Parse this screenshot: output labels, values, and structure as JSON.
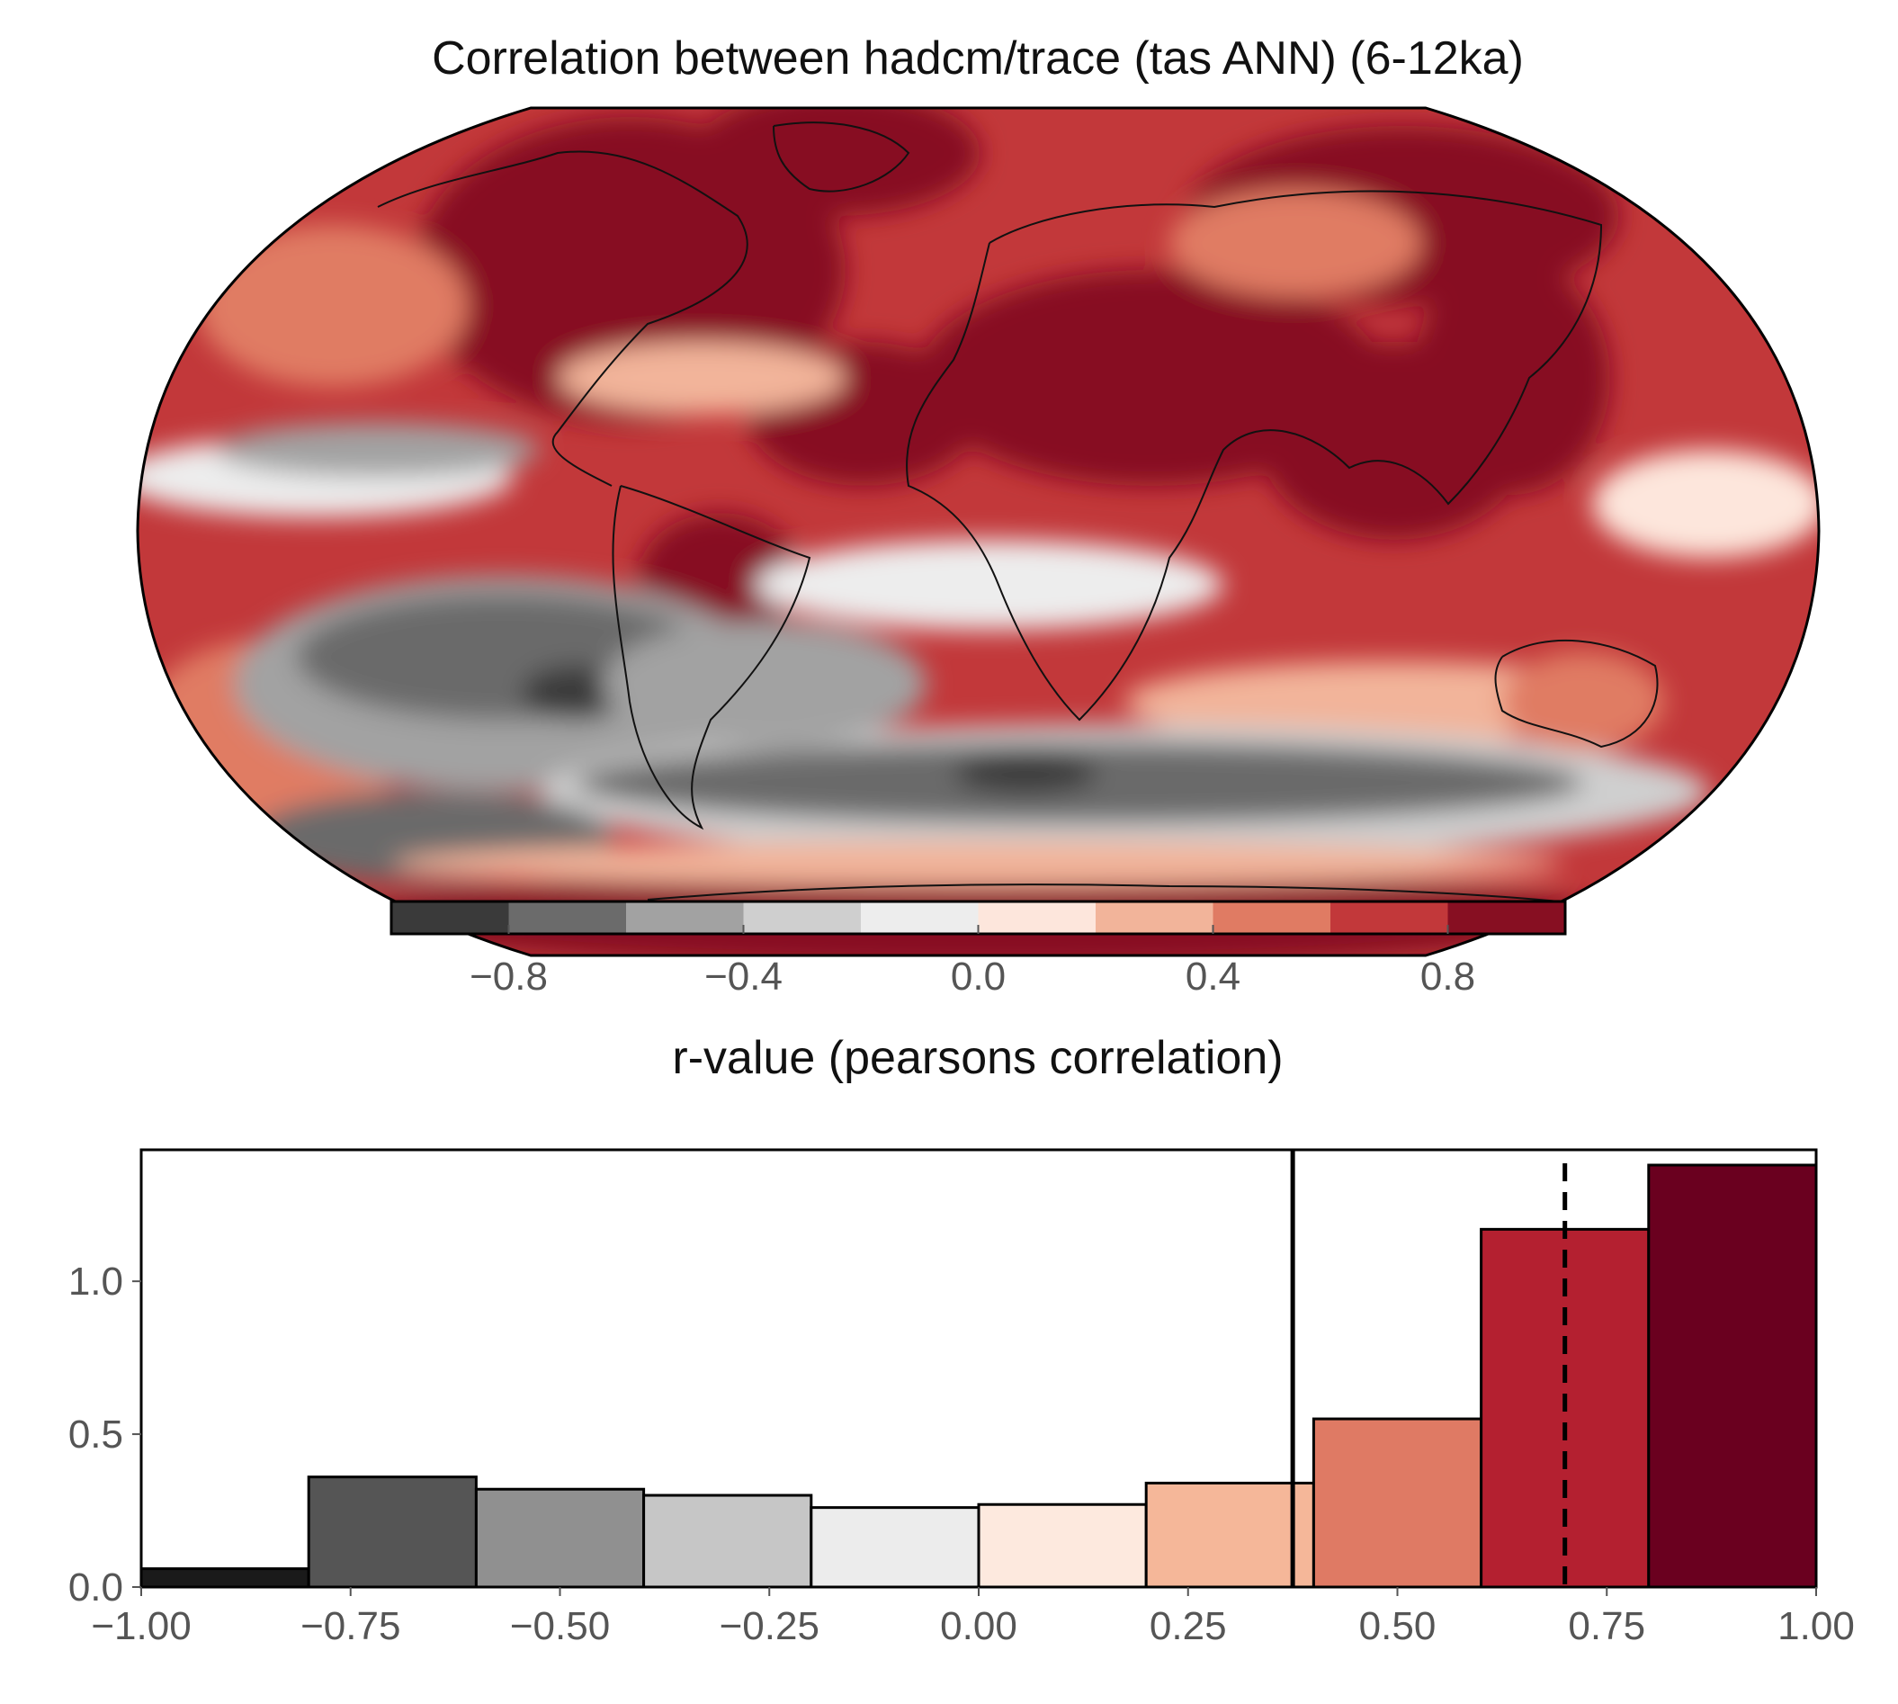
{
  "chart_data": [
    {
      "type": "heatmap",
      "title": "Correlation between hadcm/trace (tas ANN) (6-12ka)",
      "projection": "Robinson (global map)",
      "colorbar": {
        "label": "r-value (pearsons correlation)",
        "levels": [
          -1.0,
          -0.8,
          -0.6,
          -0.4,
          -0.2,
          0.0,
          0.2,
          0.4,
          0.6,
          0.8,
          1.0
        ],
        "ticks": [
          -0.8,
          -0.4,
          0.0,
          0.4,
          0.8
        ],
        "tick_labels": [
          "−0.8",
          "−0.4",
          "0.0",
          "0.4",
          "0.8"
        ],
        "colors": [
          "#3a3a3a",
          "#6b6b6b",
          "#a2a2a2",
          "#cfcfcf",
          "#ededed",
          "#fde6dc",
          "#f2b49a",
          "#e07b63",
          "#c2383a",
          "#870f22"
        ]
      }
    },
    {
      "type": "bar",
      "subtype": "histogram",
      "bin_edges": [
        -1.0,
        -0.8,
        -0.6,
        -0.4,
        -0.2,
        0.0,
        0.2,
        0.4,
        0.6,
        0.8,
        1.0
      ],
      "values": [
        0.06,
        0.36,
        0.32,
        0.3,
        0.26,
        0.27,
        0.34,
        0.55,
        1.17,
        1.38
      ],
      "bar_colors": [
        "#1a1a1a",
        "#555555",
        "#909090",
        "#c6c6c6",
        "#ececec",
        "#fde9de",
        "#f5b799",
        "#df7a64",
        "#b42030",
        "#6a001f"
      ],
      "xlim": [
        -1.0,
        1.0
      ],
      "ylim": [
        0,
        1.43
      ],
      "xticks": [
        -1.0,
        -0.75,
        -0.5,
        -0.25,
        0.0,
        0.25,
        0.5,
        0.75,
        1.0
      ],
      "xtick_labels": [
        "−1.00",
        "−0.75",
        "−0.50",
        "−0.25",
        "0.00",
        "0.25",
        "0.50",
        "0.75",
        "1.00"
      ],
      "yticks": [
        0.0,
        0.5,
        1.0
      ],
      "ytick_labels": [
        "0.0",
        "0.5",
        "1.0"
      ],
      "vlines": [
        {
          "x": 0.375,
          "style": "solid"
        },
        {
          "x": 0.7,
          "style": "dashed"
        }
      ]
    }
  ]
}
